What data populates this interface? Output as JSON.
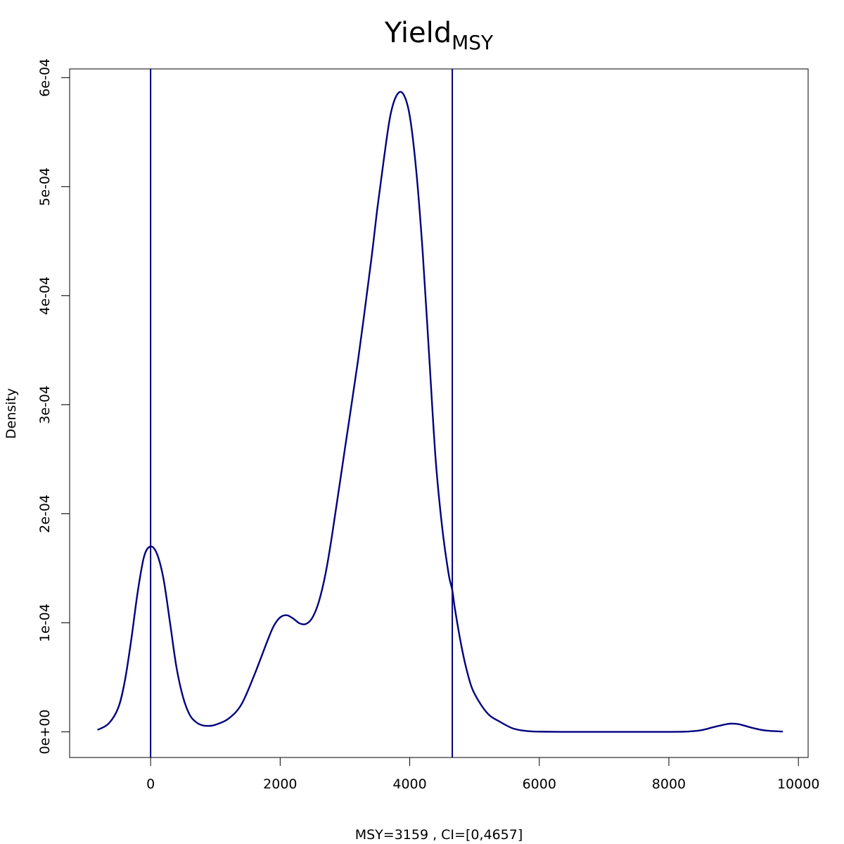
{
  "chart_data": {
    "type": "line",
    "title": "Yield",
    "title_subscript": "MSY",
    "xlabel": "MSY=3159 , CI=[0,4657]",
    "ylabel": "Density",
    "xlim": [
      -1250,
      10150
    ],
    "ylim": [
      -2.35e-05,
      0.000608
    ],
    "x_ticks": [
      0,
      2000,
      4000,
      6000,
      8000,
      10000
    ],
    "x_tick_labels": [
      "0",
      "2000",
      "4000",
      "6000",
      "8000",
      "10000"
    ],
    "y_ticks": [
      0,
      0.0001,
      0.0002,
      0.0003,
      0.0004,
      0.0005,
      0.0006
    ],
    "y_tick_labels": [
      "0e+00",
      "1e-04",
      "2e-04",
      "3e-04",
      "4e-04",
      "5e-04",
      "6e-04"
    ],
    "grid": false,
    "line_color": "#000080",
    "series": [
      {
        "x": [
          -820,
          -650,
          -500,
          -400,
          -300,
          -200,
          -100,
          0,
          100,
          200,
          300,
          400,
          500,
          600,
          700,
          800,
          900,
          1000,
          1200,
          1400,
          1600,
          1800,
          1900,
          2000,
          2100,
          2200,
          2300,
          2400,
          2500,
          2600,
          2700,
          2800,
          3000,
          3200,
          3400,
          3500,
          3600,
          3700,
          3800,
          3900,
          4000,
          4100,
          4200,
          4300,
          4400,
          4500,
          4600,
          4657,
          4700,
          4800,
          4900,
          5000,
          5200,
          5400,
          5600,
          5800,
          6000,
          6500,
          7000,
          7500,
          8000,
          8300,
          8500,
          8700,
          8900,
          9000,
          9100,
          9300,
          9500,
          9760
        ],
        "y": [
          1.8e-06,
          7.5e-06,
          2.2e-05,
          4.6e-05,
          8.4e-05,
          0.000128,
          0.000161,
          0.00017,
          0.000163,
          0.00014,
          0.0001,
          5.9e-05,
          3.2e-05,
          1.6e-05,
          9e-06,
          6e-06,
          5.5e-06,
          6.5e-06,
          1.2e-05,
          2.5e-05,
          5.2e-05,
          8.3e-05,
          9.7e-05,
          0.000105,
          0.000107,
          0.000104,
          9.95e-05,
          9.9e-05,
          0.000105,
          0.00012,
          0.000145,
          0.00018,
          0.00026,
          0.00034,
          0.00043,
          0.00048,
          0.000525,
          0.000565,
          0.000584,
          0.000585,
          0.000565,
          0.000515,
          0.00044,
          0.000345,
          0.00025,
          0.000188,
          0.000145,
          0.00013,
          0.000112,
          7.8e-05,
          5.2e-05,
          3.5e-05,
          1.7e-05,
          9e-06,
          3e-06,
          8e-07,
          2e-07,
          0,
          0,
          0,
          0,
          3e-07,
          1.5e-06,
          4.5e-06,
          7.2e-06,
          7.5e-06,
          6.8e-06,
          3.5e-06,
          1.2e-06,
          3e-07
        ]
      }
    ],
    "vlines": [
      0,
      4657
    ]
  }
}
